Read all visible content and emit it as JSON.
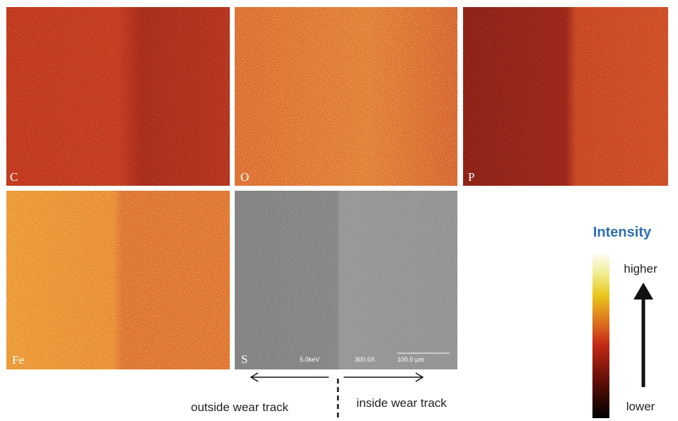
{
  "panels": [
    {
      "label": "C"
    },
    {
      "label": "O"
    },
    {
      "label": "P"
    },
    {
      "label": "Fe"
    },
    {
      "label": "S"
    }
  ],
  "sem_info": {
    "voltage": "5.0keV",
    "magnification": "300.0X",
    "scale": "100.0 μm"
  },
  "captions": {
    "outside": "outside wear track",
    "inside": "inside wear track"
  },
  "colorbar": {
    "title": "Intensity",
    "high": "higher",
    "low": "lower"
  }
}
